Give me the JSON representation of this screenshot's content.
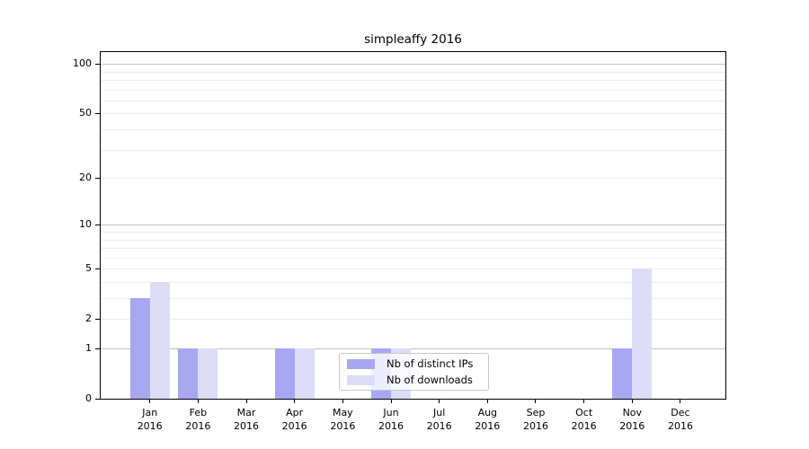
{
  "chart_data": {
    "type": "bar",
    "title": "simpleaffy 2016",
    "xlabel": "",
    "ylabel": "",
    "year": "2016",
    "categories": [
      "Jan",
      "Feb",
      "Mar",
      "Apr",
      "May",
      "Jun",
      "Jul",
      "Aug",
      "Sep",
      "Oct",
      "Nov",
      "Dec"
    ],
    "series": [
      {
        "name": "Nb of distinct IPs",
        "color": "#a7a7f2",
        "values": [
          3,
          1,
          0,
          1,
          0,
          1,
          0,
          0,
          0,
          0,
          1,
          0
        ]
      },
      {
        "name": "Nb of downloads",
        "color": "#dcdcf9",
        "values": [
          4,
          1,
          0,
          1,
          0,
          1,
          0,
          0,
          0,
          0,
          5,
          0
        ]
      }
    ],
    "yscale": "log(1+y)",
    "ylim": [
      0,
      120
    ],
    "yticks": [
      0,
      1,
      2,
      5,
      10,
      20,
      50,
      100
    ],
    "gridlines": {
      "major": [
        1,
        10,
        100
      ],
      "minor": [
        2,
        3,
        4,
        5,
        6,
        7,
        8,
        9,
        20,
        30,
        40,
        50,
        60,
        70,
        80,
        90
      ]
    },
    "grid": true,
    "legend_position": "lower center"
  },
  "colors": {
    "axis": "#000000",
    "text": "#000000",
    "major_grid": "#c3c3c3",
    "minor_grid": "#ededed",
    "legend_border": "#c9c9c9",
    "background": "#ffffff"
  }
}
